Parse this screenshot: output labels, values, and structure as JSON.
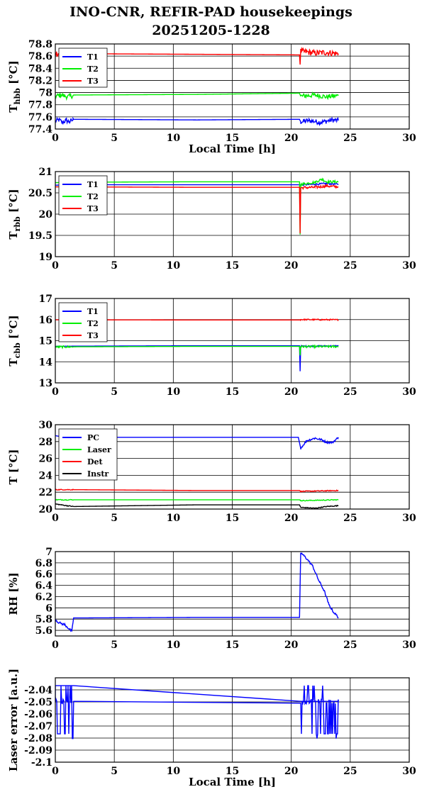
{
  "title": {
    "line1": "INO-CNR, REFIR-PAD housekeepings",
    "line2": "20251205-1228"
  },
  "colors": {
    "blue": "#0000ff",
    "green": "#00ee00",
    "red": "#ff0000",
    "black": "#000000"
  },
  "chart_data": [
    {
      "type": "line",
      "ylabel": "T_hbb [°C]",
      "ylabel_main": "T",
      "ylabel_sub": "hbb",
      "ylabel_unit": " [°C]",
      "xlabel": "Local Time [h]",
      "xlim": [
        0,
        30
      ],
      "ylim": [
        77.4,
        78.8
      ],
      "xticks": [
        0,
        5,
        10,
        15,
        20,
        25,
        30
      ],
      "yticks": [
        "77.4",
        "77.6",
        "77.8",
        "78",
        "78.2",
        "78.4",
        "78.6",
        "78.8"
      ],
      "grid": true,
      "legend": "top-left",
      "series": [
        {
          "name": "T1",
          "color": "#0000ff",
          "x": [
            0,
            0.3,
            0.6,
            0.9,
            1.2,
            1.5,
            1.55,
            12,
            20.7,
            20.8,
            21.5,
            22.5,
            23.5,
            24.0
          ],
          "y": [
            77.53,
            77.55,
            77.51,
            77.54,
            77.52,
            77.55,
            77.56,
            77.55,
            77.56,
            77.52,
            77.54,
            77.51,
            77.55,
            77.54
          ],
          "noise": 0.04,
          "noisy_ranges": [
            [
              0,
              1.55
            ],
            [
              20.8,
              24
            ]
          ]
        },
        {
          "name": "T2",
          "color": "#00ee00",
          "x": [
            0,
            0.5,
            1.0,
            1.5,
            1.55,
            12,
            20.7,
            20.8,
            22,
            23,
            24.0
          ],
          "y": [
            77.94,
            77.96,
            77.93,
            77.95,
            77.96,
            77.97,
            77.99,
            77.94,
            77.96,
            77.93,
            77.95
          ],
          "noise": 0.04,
          "noisy_ranges": [
            [
              0,
              1.55
            ],
            [
              20.8,
              24
            ]
          ]
        },
        {
          "name": "T3",
          "color": "#ff0000",
          "x": [
            0,
            0.5,
            1.0,
            1.5,
            1.55,
            12,
            20.7,
            20.75,
            20.8,
            22,
            23,
            24.0
          ],
          "y": [
            78.65,
            78.63,
            78.66,
            78.64,
            78.64,
            78.63,
            78.62,
            78.46,
            78.68,
            78.65,
            78.66,
            78.64
          ],
          "noise": 0.05,
          "noisy_ranges": [
            [
              0,
              1.55
            ],
            [
              20.8,
              24
            ]
          ]
        }
      ]
    },
    {
      "type": "line",
      "ylabel": "T_rbb [°C]",
      "ylabel_main": "T",
      "ylabel_sub": "rbb",
      "ylabel_unit": " [°C]",
      "xlabel": "",
      "xlim": [
        0,
        30
      ],
      "ylim": [
        19,
        21
      ],
      "xticks": [
        0,
        5,
        10,
        15,
        20,
        25,
        30
      ],
      "yticks": [
        "19",
        "19.5",
        "20",
        "20.5",
        "21"
      ],
      "grid": true,
      "legend": "top-left",
      "series": [
        {
          "name": "T1",
          "color": "#0000ff",
          "x": [
            0,
            1.55,
            12,
            20.7,
            20.8,
            22,
            23,
            24.0
          ],
          "y": [
            20.68,
            20.69,
            20.69,
            20.69,
            20.69,
            20.7,
            20.72,
            20.7
          ],
          "noise": 0.02,
          "noisy_ranges": [
            [
              20.8,
              24
            ]
          ]
        },
        {
          "name": "T2",
          "color": "#00ee00",
          "x": [
            0,
            1.55,
            12,
            20.7,
            20.75,
            20.8,
            22,
            22.6,
            23,
            24.0
          ],
          "y": [
            20.74,
            20.75,
            20.76,
            20.76,
            19.52,
            20.7,
            20.75,
            20.82,
            20.76,
            20.76
          ],
          "noise": 0.03,
          "noisy_ranges": [
            [
              20.8,
              24
            ]
          ]
        },
        {
          "name": "T3",
          "color": "#ff0000",
          "x": [
            0,
            1.55,
            12,
            20.7,
            20.75,
            20.8,
            22,
            23,
            24.0
          ],
          "y": [
            20.64,
            20.64,
            20.63,
            20.63,
            19.55,
            20.62,
            20.63,
            20.66,
            20.64
          ],
          "noise": 0.03,
          "noisy_ranges": [
            [
              20.8,
              24
            ]
          ]
        }
      ]
    },
    {
      "type": "line",
      "ylabel": "T_cbb [°C]",
      "ylabel_main": "T",
      "ylabel_sub": "cbb",
      "ylabel_unit": " [°C]",
      "xlabel": "",
      "xlim": [
        0,
        30
      ],
      "ylim": [
        13,
        17
      ],
      "xticks": [
        0,
        5,
        10,
        15,
        20,
        25,
        30
      ],
      "yticks": [
        "13",
        "14",
        "15",
        "16",
        "17"
      ],
      "grid": true,
      "legend": "top-left",
      "series": [
        {
          "name": "T1",
          "color": "#0000ff",
          "x": [
            0,
            1.55,
            12,
            20.7,
            20.75,
            20.8,
            24.0
          ],
          "y": [
            14.73,
            14.74,
            14.76,
            14.76,
            13.55,
            14.74,
            14.75
          ],
          "noise": 0.03,
          "noisy_ranges": [
            [
              20.8,
              24
            ]
          ]
        },
        {
          "name": "T2",
          "color": "#00ee00",
          "x": [
            0,
            1.55,
            12,
            20.7,
            20.75,
            20.8,
            24.0
          ],
          "y": [
            14.7,
            14.71,
            14.73,
            14.73,
            14.3,
            14.72,
            14.72
          ],
          "noise": 0.05,
          "noisy_ranges": [
            [
              0,
              1.55
            ],
            [
              20.8,
              24
            ]
          ]
        },
        {
          "name": "T3",
          "color": "#ff0000",
          "x": [
            0,
            1.55,
            12,
            20.7,
            20.8,
            24.0
          ],
          "y": [
            15.99,
            15.99,
            15.98,
            15.98,
            16.0,
            15.99
          ],
          "noise": 0.03,
          "noisy_ranges": [
            [
              20.8,
              24
            ]
          ]
        }
      ]
    },
    {
      "type": "line",
      "ylabel": "T [°C]",
      "ylabel_main": "T [°C]",
      "ylabel_sub": "",
      "ylabel_unit": "",
      "xlabel": "",
      "xlim": [
        0,
        30
      ],
      "ylim": [
        20,
        30
      ],
      "xticks": [
        0,
        5,
        10,
        15,
        20,
        25,
        30
      ],
      "yticks": [
        "20",
        "22",
        "24",
        "26",
        "28",
        "30"
      ],
      "grid": true,
      "legend": "top-left",
      "series": [
        {
          "name": "PC",
          "color": "#0000ff",
          "x": [
            0,
            0.4,
            0.8,
            1.55,
            12,
            20.6,
            20.8,
            21.3,
            22.0,
            22.6,
            23.0,
            23.5,
            24.0
          ],
          "y": [
            28.7,
            28.6,
            28.5,
            28.5,
            28.5,
            28.5,
            27.2,
            28.1,
            28.4,
            28.2,
            27.9,
            27.9,
            28.5
          ],
          "noise": 0.12,
          "noisy_ranges": [
            [
              20.8,
              24
            ]
          ]
        },
        {
          "name": "Laser",
          "color": "#00ee00",
          "x": [
            0,
            1.55,
            12,
            20.7,
            20.8,
            24.0
          ],
          "y": [
            21.1,
            21.1,
            21.1,
            21.1,
            21.0,
            21.1
          ],
          "noise": 0.05,
          "noisy_ranges": [
            [
              0,
              1.55
            ],
            [
              20.8,
              24
            ]
          ]
        },
        {
          "name": "Det",
          "color": "#ff0000",
          "x": [
            0,
            1.55,
            12,
            20.7,
            20.8,
            24.0
          ],
          "y": [
            22.3,
            22.3,
            22.2,
            22.2,
            22.1,
            22.2
          ],
          "noise": 0.05,
          "noisy_ranges": [
            [
              0,
              1.55
            ],
            [
              20.8,
              24
            ]
          ]
        },
        {
          "name": "Instr",
          "color": "#000000",
          "x": [
            0,
            0.5,
            1.0,
            1.55,
            12,
            20.7,
            20.8,
            22,
            23,
            24.0
          ],
          "y": [
            20.6,
            20.5,
            20.4,
            20.3,
            20.5,
            20.5,
            20.2,
            20.1,
            20.3,
            20.4
          ],
          "noise": 0.05,
          "noisy_ranges": [
            [
              0,
              1.55
            ],
            [
              20.8,
              24
            ]
          ]
        }
      ]
    },
    {
      "type": "line",
      "ylabel": "RH [%]",
      "ylabel_main": "RH [%]",
      "ylabel_sub": "",
      "ylabel_unit": "",
      "xlabel": "",
      "xlim": [
        0,
        30
      ],
      "ylim": [
        5.5,
        7.0
      ],
      "xticks": [
        0,
        5,
        10,
        15,
        20,
        25,
        30
      ],
      "yticks": [
        "5.6",
        "5.8",
        "6",
        "6.2",
        "6.4",
        "6.6",
        "6.8",
        "7"
      ],
      "grid": true,
      "legend": "none",
      "series": [
        {
          "name": "RH",
          "color": "#0000ff",
          "x": [
            0,
            0.2,
            0.5,
            0.8,
            1.0,
            1.2,
            1.4,
            1.55,
            12,
            20.7,
            20.8,
            21.2,
            21.8,
            22.3,
            22.8,
            23.2,
            23.6,
            24.0
          ],
          "y": [
            5.8,
            5.75,
            5.72,
            5.7,
            5.66,
            5.62,
            5.58,
            5.82,
            5.83,
            5.83,
            6.98,
            6.9,
            6.75,
            6.5,
            6.3,
            6.05,
            5.92,
            5.83
          ],
          "noise": 0.02,
          "noisy_ranges": [
            [
              0,
              1.5
            ],
            [
              20.8,
              24
            ]
          ]
        }
      ]
    },
    {
      "type": "line",
      "ylabel": "Laser error [a.u.]",
      "ylabel_main": "Laser error [a.u.]",
      "ylabel_sub": "",
      "ylabel_unit": "",
      "xlabel": "Local Time [h]",
      "xlim": [
        0,
        30
      ],
      "ylim": [
        -2.1,
        -2.03
      ],
      "xticks": [
        0,
        5,
        10,
        15,
        20,
        25,
        30
      ],
      "yticks": [
        "-2.1",
        "-2.09",
        "-2.08",
        "-2.07",
        "-2.06",
        "-2.05",
        "-2.04"
      ],
      "grid": true,
      "legend": "none",
      "series": [
        {
          "name": "error",
          "color": "#0000ff",
          "x": [
            0,
            1.55,
            20.8,
            24.0
          ],
          "y": [
            -2.0365,
            -2.0365,
            -2.0495,
            -2.0495
          ],
          "spikes": [
            [
              0,
              1.55,
              -2.0495,
              -2.0765,
              -2.0365,
              -2.0895
            ],
            [
              20.8,
              24.0,
              -2.0495,
              -2.0765,
              -2.0365,
              -2.0895
            ]
          ]
        }
      ]
    }
  ]
}
